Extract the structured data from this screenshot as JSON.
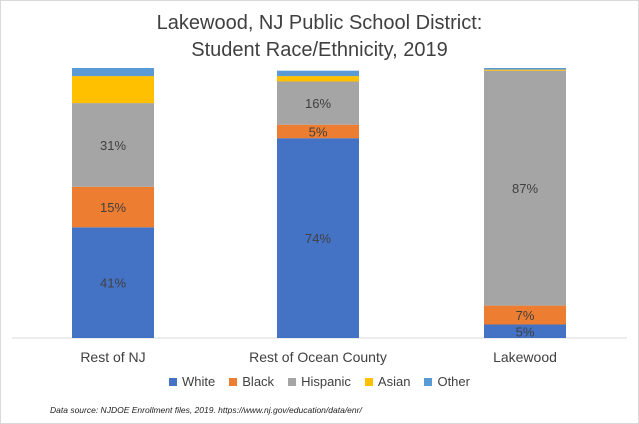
{
  "chart_data": {
    "type": "bar",
    "stacked": true,
    "title": "Lakewood, NJ Public School District:",
    "subtitle": "Student Race/Ethnicity, 2019",
    "categories": [
      "Rest of NJ",
      "Rest of Ocean County",
      "Lakewood"
    ],
    "series": [
      {
        "name": "White",
        "color": "#4472c4",
        "values": [
          41,
          74,
          5
        ],
        "labels": [
          "41%",
          "74%",
          "5%"
        ]
      },
      {
        "name": "Black",
        "color": "#ed7d31",
        "values": [
          15,
          5,
          7
        ],
        "labels": [
          "15%",
          "5%",
          "7%"
        ]
      },
      {
        "name": "Hispanic",
        "color": "#a5a5a5",
        "values": [
          31,
          16,
          87
        ],
        "labels": [
          "31%",
          "16%",
          "87%"
        ]
      },
      {
        "name": "Asian",
        "color": "#ffc000",
        "values": [
          10,
          2,
          0.4
        ],
        "labels": [
          "",
          "",
          ""
        ]
      },
      {
        "name": "Other",
        "color": "#5b9bd5",
        "values": [
          3,
          2,
          0.6
        ],
        "labels": [
          "",
          "",
          ""
        ]
      }
    ],
    "ylim": [
      0,
      100
    ],
    "legend_position": "bottom",
    "grid": false
  },
  "source_note": "Data source: NJDOE Enrollment files,  2019.  https://www.nj.gov/education/data/enr/"
}
